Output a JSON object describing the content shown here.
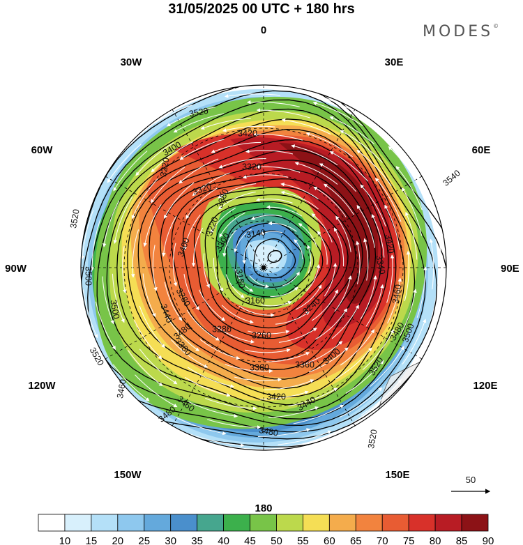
{
  "title": "31/05/2025  00 UTC  + 180 hrs",
  "brand": {
    "name": "MODES",
    "mark": "©"
  },
  "longitude_labels": {
    "deg0": "0",
    "deg30e": "30E",
    "deg60e": "60E",
    "deg90e": "90E",
    "deg120e": "120E",
    "deg150e": "150E",
    "deg180": "180",
    "deg150w": "150W",
    "deg120w": "120W",
    "deg90w": "90W",
    "deg60w": "60W",
    "deg30w": "30W"
  },
  "contour_labels": [
    "3140",
    "3160",
    "3180",
    "3220",
    "3220",
    "3240",
    "3260",
    "3280",
    "3280",
    "3300",
    "3320",
    "3320",
    "3340",
    "3360",
    "3360",
    "3380",
    "3380",
    "3400",
    "3400",
    "3400",
    "3420",
    "3420",
    "3420",
    "3440",
    "3440",
    "3460",
    "3460",
    "3460",
    "3480",
    "3480",
    "3480",
    "3480",
    "3500",
    "3500",
    "3500",
    "3520",
    "3520",
    "3520",
    "3520",
    "3520",
    "3540"
  ],
  "wind_reference": {
    "label": "50"
  },
  "colorbar": {
    "ticks": [
      "10",
      "15",
      "20",
      "25",
      "30",
      "35",
      "40",
      "45",
      "50",
      "55",
      "60",
      "65",
      "70",
      "75",
      "80",
      "85",
      "90"
    ],
    "colors": [
      "#ffffff",
      "#d8f0fc",
      "#b4e0f8",
      "#8ec8ee",
      "#64a9dc",
      "#4a8fcc",
      "#46a68e",
      "#3cb04c",
      "#78c448",
      "#bcd94c",
      "#f5de55",
      "#f4ac4c",
      "#f2833e",
      "#e85c33",
      "#d8312a",
      "#b81c24",
      "#8c1216"
    ]
  },
  "colors": {
    "land": "#ececec",
    "coast": "#4a4a4a",
    "contour": "#000000",
    "streamline": "#ffffff",
    "grid": "#000000"
  }
}
